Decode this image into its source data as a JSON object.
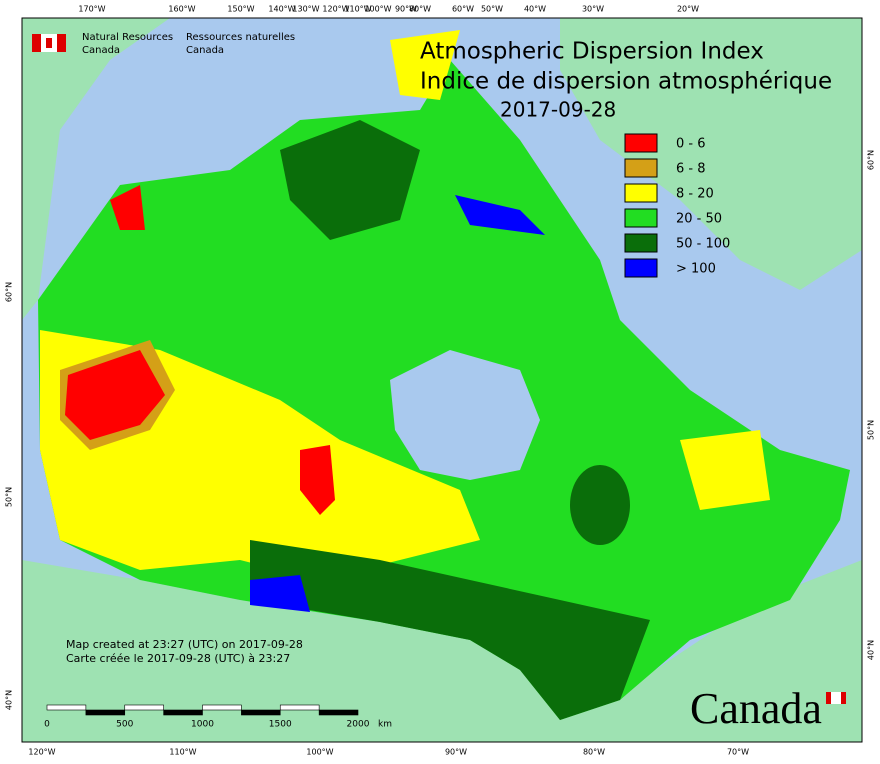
{
  "header": {
    "department_en": [
      "Natural Resources",
      "Canada"
    ],
    "department_fr": [
      "Ressources naturelles",
      "Canada"
    ]
  },
  "title": [
    "Atmospheric Dispersion Index",
    "Indice de dispersion atmosphérique"
  ],
  "date": "2017-09-28",
  "legend": [
    {
      "label": "0 - 6",
      "color": "#ff0000"
    },
    {
      "label": "6 - 8",
      "color": "#d4a017"
    },
    {
      "label": "8 - 20",
      "color": "#ffff00"
    },
    {
      "label": "20 - 50",
      "color": "#22dd22"
    },
    {
      "label": "50 - 100",
      "color": "#0a6e0a"
    },
    {
      "label": "> 100",
      "color": "#0000ff"
    }
  ],
  "graticule": {
    "top": [
      "170°W",
      "160°W",
      "150°W",
      "140°W",
      "130°W",
      "120°W",
      "110°W",
      "100°W",
      "90°W",
      "80°W",
      "60°W",
      "50°W",
      "40°W",
      "30°W",
      "20°W"
    ],
    "bottom": [
      "120°W",
      "110°W",
      "100°W",
      "90°W",
      "80°W",
      "70°W"
    ],
    "left": [
      "60°N",
      "50°N",
      "40°N"
    ],
    "right": [
      "60°N",
      "50°N",
      "40°N"
    ]
  },
  "notes": [
    "Map created at 23:27 (UTC) on 2017-09-28",
    "Carte créée le 2017-09-28 (UTC) à 23:27"
  ],
  "scale_bar": {
    "labels": [
      "0",
      "500",
      "1000",
      "1500",
      "2000"
    ],
    "unit": "km"
  },
  "wordmark": "Canada"
}
